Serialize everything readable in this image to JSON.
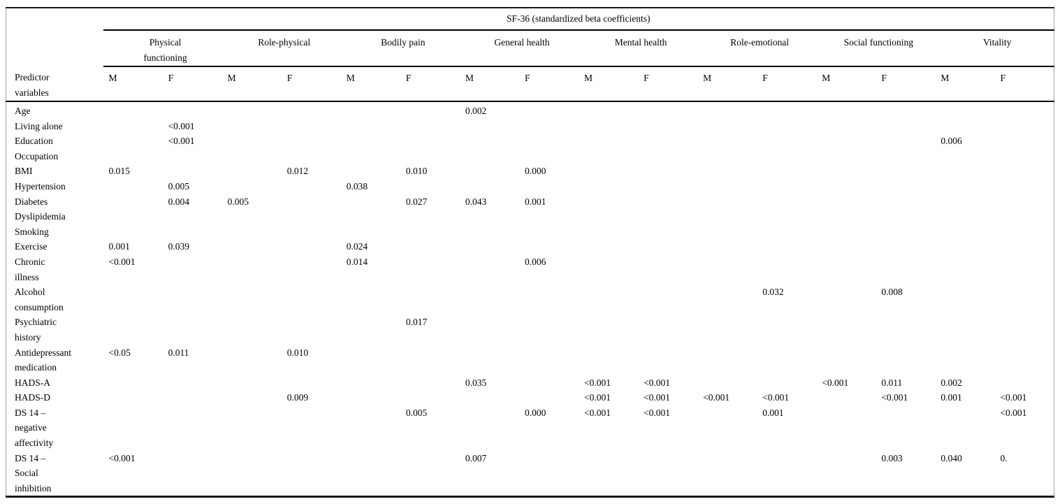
{
  "table": {
    "title_spanner": "SF-36 (standardized beta coefficients)",
    "stub_header": "Predictor\nvariables",
    "column_groups": [
      "Physical\nfunctioning",
      "Role-physical",
      "Bodily pain",
      "General health",
      "Mental health",
      "Role-emotional",
      "Social functioning",
      "Vitality"
    ],
    "sex_subheaders": [
      "M",
      "F"
    ],
    "value_column_order": [
      "Physical functioning M",
      "Physical functioning F",
      "Role-physical M",
      "Role-physical F",
      "Bodily pain M",
      "Bodily pain F",
      "General health M",
      "General health F",
      "Mental health M",
      "Mental health F",
      "Role-emotional M",
      "Role-emotional F",
      "Social functioning M",
      "Social functioning F",
      "Vitality M",
      "Vitality F"
    ],
    "rows": [
      {
        "label": "Age",
        "values": [
          "",
          "",
          "",
          "",
          "",
          "",
          "0.002",
          "",
          "",
          "",
          "",
          "",
          "",
          "",
          "",
          ""
        ]
      },
      {
        "label": "Living alone",
        "values": [
          "",
          "<0.001",
          "",
          "",
          "",
          "",
          "",
          "",
          "",
          "",
          "",
          "",
          "",
          "",
          "",
          ""
        ]
      },
      {
        "label": "Education",
        "values": [
          "",
          "<0.001",
          "",
          "",
          "",
          "",
          "",
          "",
          "",
          "",
          "",
          "",
          "",
          "",
          "0.006",
          ""
        ]
      },
      {
        "label": "Occupation",
        "values": [
          "",
          "",
          "",
          "",
          "",
          "",
          "",
          "",
          "",
          "",
          "",
          "",
          "",
          "",
          "",
          ""
        ]
      },
      {
        "label": "BMI",
        "values": [
          "0.015",
          "",
          "",
          "0.012",
          "",
          "0.010",
          "",
          "0.000",
          "",
          "",
          "",
          "",
          "",
          "",
          "",
          ""
        ]
      },
      {
        "label": "Hypertension",
        "values": [
          "",
          "0.005",
          "",
          "",
          "0.038",
          "",
          "",
          "",
          "",
          "",
          "",
          "",
          "",
          "",
          "",
          ""
        ]
      },
      {
        "label": "Diabetes",
        "values": [
          "",
          "0.004",
          "0.005",
          "",
          "",
          "0.027",
          "0.043",
          "0.001",
          "",
          "",
          "",
          "",
          "",
          "",
          "",
          ""
        ]
      },
      {
        "label": "Dyslipidemia",
        "values": [
          "",
          "",
          "",
          "",
          "",
          "",
          "",
          "",
          "",
          "",
          "",
          "",
          "",
          "",
          "",
          ""
        ]
      },
      {
        "label": "Smoking",
        "values": [
          "",
          "",
          "",
          "",
          "",
          "",
          "",
          "",
          "",
          "",
          "",
          "",
          "",
          "",
          "",
          ""
        ]
      },
      {
        "label": "Exercise",
        "values": [
          "0.001",
          "0.039",
          "",
          "",
          "0.024",
          "",
          "",
          "",
          "",
          "",
          "",
          "",
          "",
          "",
          "",
          ""
        ]
      },
      {
        "label": "Chronic\nillness",
        "values": [
          "<0.001",
          "",
          "",
          "",
          "0.014",
          "",
          "",
          "0.006",
          "",
          "",
          "",
          "",
          "",
          "",
          "",
          ""
        ]
      },
      {
        "label": "Alcohol\nconsumption",
        "values": [
          "",
          "",
          "",
          "",
          "",
          "",
          "",
          "",
          "",
          "",
          "",
          "0.032",
          "",
          "0.008",
          "",
          ""
        ]
      },
      {
        "label": "Psychiatric\nhistory",
        "values": [
          "",
          "",
          "",
          "",
          "",
          "0.017",
          "",
          "",
          "",
          "",
          "",
          "",
          "",
          "",
          "",
          ""
        ]
      },
      {
        "label": "Antidepressant\nmedication",
        "values": [
          "<0.05",
          "0.011",
          "",
          "0.010",
          "",
          "",
          "",
          "",
          "",
          "",
          "",
          "",
          "",
          "",
          "",
          ""
        ]
      },
      {
        "label": "HADS-A",
        "values": [
          "",
          "",
          "",
          "",
          "",
          "",
          "0.035",
          "",
          "<0.001",
          "<0.001",
          "",
          "",
          "<0.001",
          "0.011",
          "0.002",
          ""
        ]
      },
      {
        "label": "HADS-D",
        "values": [
          "",
          "",
          "",
          "0.009",
          "",
          "",
          "",
          "",
          "<0.001",
          "<0.001",
          "<0.001",
          "<0.001",
          "",
          "<0.001",
          "0.001",
          "<0.001"
        ]
      },
      {
        "label": "DS 14 –\nnegative\naffectivity",
        "values": [
          "",
          "",
          "",
          "",
          "",
          "0.005",
          "",
          "0.000",
          "<0.001",
          "<0.001",
          "",
          "0.001",
          "",
          "",
          "",
          "<0.001"
        ]
      },
      {
        "label": "DS 14 –\nSocial\ninhibition",
        "values": [
          "<0.001",
          "",
          "",
          "",
          "",
          "",
          "0.007",
          "",
          "",
          "",
          "",
          "",
          "",
          "0.003",
          "0.040",
          "0."
        ]
      }
    ],
    "colors": {
      "rule": "#000000",
      "frame_side": "#a6a6a6",
      "text": "#000000",
      "background": "#ffffff"
    }
  }
}
